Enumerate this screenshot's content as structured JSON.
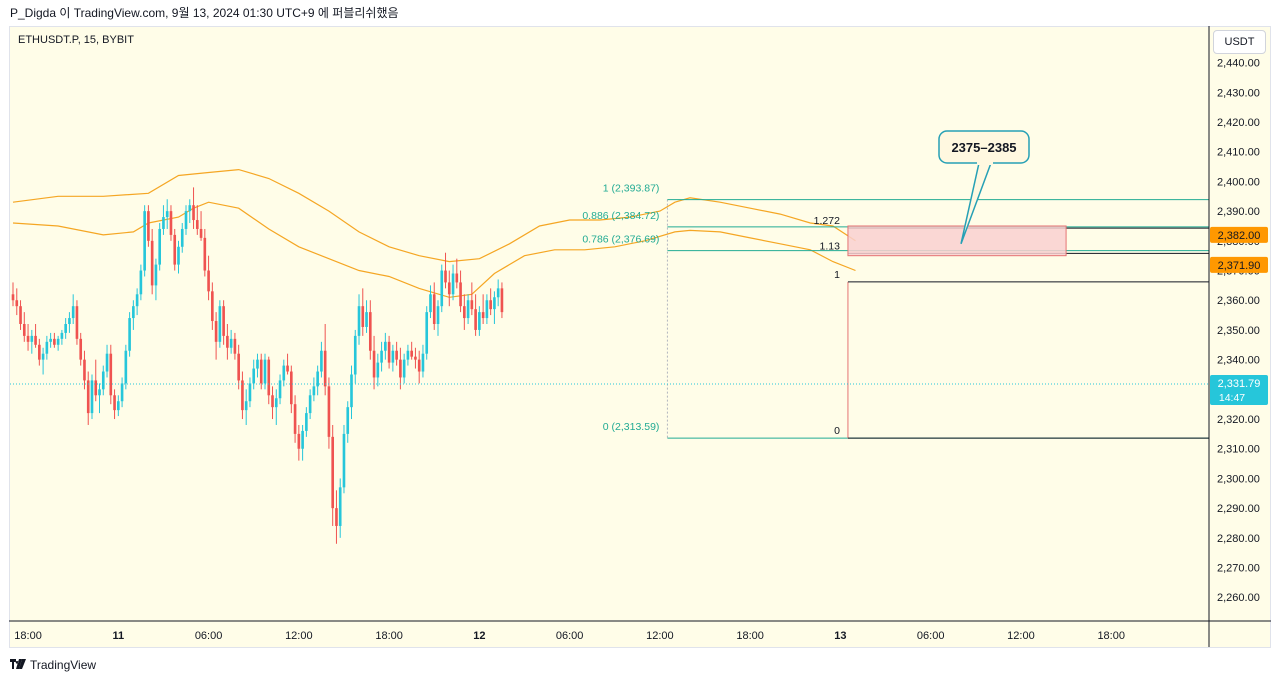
{
  "header": {
    "attribution": "P_Digda 이 TradingView.com, 9월 13, 2024 01:30 UTC+9 에 퍼블리쉬했음"
  },
  "symbol": "ETHUSDT.P, 15, BYBIT",
  "currency": "USDT",
  "footer": {
    "brand": "TradingView",
    "logo_icon": "tradingview-logo-icon"
  },
  "colors": {
    "up": "#26c6da",
    "down": "#ef5350",
    "band": "#f5a623",
    "fib": "#22ab94",
    "target_fill": "#f9d0d0",
    "target_border": "#e57373",
    "callout": "#26a0b5",
    "price_label": "#26c6da",
    "level_label": "#ff9800"
  },
  "chart_data": {
    "type": "candlestick",
    "y_axis": {
      "range": [
        2252,
        2452
      ],
      "ticks": [
        "2,440.00",
        "2,430.00",
        "2,420.00",
        "2,410.00",
        "2,400.00",
        "2,390.00",
        "2,380.00",
        "2,370.00",
        "2,360.00",
        "2,350.00",
        "2,340.00",
        "2,330.00",
        "2,320.00",
        "2,310.00",
        "2,300.00",
        "2,290.00",
        "2,280.00",
        "2,270.00",
        "2,260.00"
      ],
      "tick_values": [
        2440,
        2430,
        2420,
        2410,
        2400,
        2390,
        2380,
        2370,
        2360,
        2350,
        2340,
        2330,
        2320,
        2310,
        2300,
        2290,
        2280,
        2270,
        2260
      ]
    },
    "x_axis": {
      "labels": [
        "18:00",
        "11",
        "06:00",
        "12:00",
        "18:00",
        "12",
        "06:00",
        "12:00",
        "18:00",
        "13",
        "06:00",
        "12:00",
        "18:00"
      ],
      "label_hours": [
        0,
        6,
        12,
        18,
        24,
        30,
        36,
        42,
        48,
        54,
        60,
        66,
        72
      ],
      "bold": [
        false,
        true,
        false,
        false,
        false,
        true,
        false,
        false,
        false,
        true,
        false,
        false,
        false
      ],
      "range_hours": [
        -1.2,
        78.5
      ]
    },
    "current_price": {
      "value": 2331.79,
      "label": "2,331.79",
      "countdown": "14:47"
    },
    "price_labels": [
      {
        "value": 2382.0,
        "label": "2,382.00"
      },
      {
        "value": 2371.9,
        "label": "2,371.90"
      }
    ],
    "fib_retracement": {
      "start_hour": 42.5,
      "end_hour": 78.5,
      "levels": [
        {
          "label": "1 (2,393.87)",
          "value": 2393.87
        },
        {
          "label": "0.886 (2,384.72)",
          "value": 2384.72
        },
        {
          "label": "0.786 (2,376.69)",
          "value": 2376.69
        },
        {
          "label": "0 (2,313.59)",
          "value": 2313.59
        }
      ]
    },
    "fib_extension": {
      "start_hour": 54.5,
      "end_hour": 78.5,
      "levels": [
        {
          "label": "1.272",
          "value": 2384.3
        },
        {
          "label": "1.13",
          "value": 2375.8
        },
        {
          "label": "1",
          "value": 2366.2
        },
        {
          "label": "0",
          "value": 2313.59
        }
      ]
    },
    "target_zone": {
      "from_value": 2375,
      "to_value": 2385,
      "start_hour": 54.5,
      "end_hour": 69,
      "label": "2375–2385"
    },
    "bands": {
      "upper": [
        [
          -1,
          2393
        ],
        [
          2,
          2395
        ],
        [
          5,
          2395
        ],
        [
          8,
          2396
        ],
        [
          10,
          2402
        ],
        [
          12,
          2403
        ],
        [
          14,
          2404
        ],
        [
          16,
          2401
        ],
        [
          18,
          2396
        ],
        [
          20,
          2390
        ],
        [
          22,
          2383
        ],
        [
          24,
          2378
        ],
        [
          26,
          2375
        ],
        [
          28,
          2373
        ],
        [
          30,
          2374
        ],
        [
          32,
          2379
        ],
        [
          34,
          2385
        ],
        [
          36,
          2387
        ],
        [
          38,
          2387
        ],
        [
          40,
          2388
        ],
        [
          42,
          2390
        ],
        [
          43,
          2393
        ],
        [
          44,
          2394.5
        ],
        [
          46,
          2393
        ],
        [
          48,
          2391
        ],
        [
          50,
          2389
        ],
        [
          52,
          2386
        ],
        [
          53.5,
          2385
        ],
        [
          55,
          2380
        ]
      ],
      "lower": [
        [
          -1,
          2386
        ],
        [
          2,
          2385
        ],
        [
          5,
          2382
        ],
        [
          7,
          2383
        ],
        [
          8,
          2386
        ],
        [
          10,
          2388
        ],
        [
          11,
          2391
        ],
        [
          12,
          2393
        ],
        [
          14,
          2391
        ],
        [
          16,
          2384
        ],
        [
          18,
          2378
        ],
        [
          20,
          2374
        ],
        [
          22,
          2370
        ],
        [
          24,
          2368
        ],
        [
          26,
          2364
        ],
        [
          28,
          2361
        ],
        [
          29.5,
          2362
        ],
        [
          31,
          2369
        ],
        [
          33,
          2375
        ],
        [
          35,
          2377
        ],
        [
          37,
          2377
        ],
        [
          39,
          2378
        ],
        [
          41,
          2380
        ],
        [
          43,
          2383
        ],
        [
          44,
          2383.5
        ],
        [
          46,
          2383
        ],
        [
          48,
          2381
        ],
        [
          50,
          2379
        ],
        [
          52,
          2377
        ],
        [
          53.5,
          2373
        ],
        [
          55,
          2370
        ]
      ]
    },
    "candles": [
      [
        -1,
        2362,
        2366,
        2358,
        2360
      ],
      [
        -0.75,
        2360,
        2364,
        2355,
        2358
      ],
      [
        -0.5,
        2358,
        2360,
        2350,
        2352
      ],
      [
        -0.25,
        2352,
        2356,
        2346,
        2348
      ],
      [
        0,
        2348,
        2352,
        2343,
        2346
      ],
      [
        0.25,
        2346,
        2350,
        2342,
        2348
      ],
      [
        0.5,
        2348,
        2352,
        2344,
        2345
      ],
      [
        0.75,
        2345,
        2347,
        2338,
        2340
      ],
      [
        1,
        2340,
        2344,
        2335,
        2342
      ],
      [
        1.25,
        2342,
        2348,
        2340,
        2346
      ],
      [
        1.5,
        2346,
        2349,
        2344,
        2347
      ],
      [
        1.75,
        2347,
        2349,
        2344,
        2345
      ],
      [
        2,
        2345,
        2348,
        2343,
        2347
      ],
      [
        2.25,
        2347,
        2350,
        2345,
        2349
      ],
      [
        2.5,
        2349,
        2354,
        2347,
        2352
      ],
      [
        2.75,
        2352,
        2356,
        2349,
        2354
      ],
      [
        3,
        2354,
        2362,
        2352,
        2358
      ],
      [
        3.25,
        2358,
        2360,
        2345,
        2347
      ],
      [
        3.5,
        2347,
        2349,
        2338,
        2340
      ],
      [
        3.75,
        2340,
        2343,
        2330,
        2333
      ],
      [
        4,
        2333,
        2336,
        2318,
        2322
      ],
      [
        4.25,
        2322,
        2335,
        2320,
        2333
      ],
      [
        4.5,
        2333,
        2340,
        2326,
        2328
      ],
      [
        4.75,
        2328,
        2332,
        2322,
        2330
      ],
      [
        5,
        2330,
        2338,
        2328,
        2336
      ],
      [
        5.25,
        2336,
        2345,
        2334,
        2342
      ],
      [
        5.5,
        2342,
        2345,
        2325,
        2328
      ],
      [
        5.75,
        2328,
        2330,
        2320,
        2323
      ],
      [
        6,
        2323,
        2328,
        2321,
        2326
      ],
      [
        6.25,
        2326,
        2334,
        2324,
        2332
      ],
      [
        6.5,
        2332,
        2345,
        2330,
        2343
      ],
      [
        6.75,
        2343,
        2356,
        2341,
        2354
      ],
      [
        7,
        2354,
        2360,
        2350,
        2358
      ],
      [
        7.25,
        2358,
        2364,
        2355,
        2362
      ],
      [
        7.5,
        2362,
        2372,
        2360,
        2370
      ],
      [
        7.75,
        2370,
        2392,
        2368,
        2390
      ],
      [
        8,
        2390,
        2392,
        2378,
        2380
      ],
      [
        8.25,
        2380,
        2384,
        2362,
        2365
      ],
      [
        8.5,
        2365,
        2374,
        2360,
        2372
      ],
      [
        8.75,
        2372,
        2386,
        2370,
        2384
      ],
      [
        9,
        2384,
        2392,
        2382,
        2388
      ],
      [
        9.25,
        2388,
        2394,
        2384,
        2390
      ],
      [
        9.5,
        2390,
        2392,
        2380,
        2382
      ],
      [
        9.75,
        2382,
        2384,
        2370,
        2372
      ],
      [
        10,
        2372,
        2380,
        2369,
        2378
      ],
      [
        10.25,
        2378,
        2386,
        2376,
        2384
      ],
      [
        10.5,
        2384,
        2392,
        2382,
        2390
      ],
      [
        10.75,
        2390,
        2394,
        2386,
        2392
      ],
      [
        11,
        2392,
        2398,
        2384,
        2387
      ],
      [
        11.25,
        2387,
        2392,
        2382,
        2384
      ],
      [
        11.5,
        2384,
        2390,
        2380,
        2381
      ],
      [
        11.75,
        2381,
        2384,
        2368,
        2370
      ],
      [
        12,
        2370,
        2375,
        2360,
        2363
      ],
      [
        12.25,
        2363,
        2366,
        2350,
        2353
      ],
      [
        12.5,
        2353,
        2356,
        2340,
        2346
      ],
      [
        12.75,
        2346,
        2360,
        2344,
        2358
      ],
      [
        13,
        2358,
        2360,
        2345,
        2348
      ],
      [
        13.25,
        2348,
        2352,
        2340,
        2344
      ],
      [
        13.5,
        2344,
        2350,
        2342,
        2347
      ],
      [
        13.75,
        2347,
        2349,
        2340,
        2342
      ],
      [
        14,
        2342,
        2345,
        2330,
        2333
      ],
      [
        14.25,
        2333,
        2336,
        2320,
        2323
      ],
      [
        14.5,
        2323,
        2330,
        2318,
        2326
      ],
      [
        14.75,
        2326,
        2334,
        2324,
        2332
      ],
      [
        15,
        2332,
        2340,
        2330,
        2337
      ],
      [
        15.25,
        2337,
        2342,
        2334,
        2340
      ],
      [
        15.5,
        2340,
        2342,
        2330,
        2332
      ],
      [
        15.75,
        2332,
        2342,
        2330,
        2340
      ],
      [
        16,
        2340,
        2341,
        2325,
        2328
      ],
      [
        16.25,
        2328,
        2331,
        2320,
        2324
      ],
      [
        16.5,
        2324,
        2330,
        2318,
        2327
      ],
      [
        16.75,
        2327,
        2335,
        2325,
        2333
      ],
      [
        17,
        2333,
        2340,
        2331,
        2338
      ],
      [
        17.25,
        2338,
        2342,
        2335,
        2336
      ],
      [
        17.5,
        2336,
        2338,
        2322,
        2325
      ],
      [
        17.75,
        2325,
        2328,
        2312,
        2315
      ],
      [
        18,
        2315,
        2318,
        2306,
        2310
      ],
      [
        18.25,
        2310,
        2318,
        2306,
        2316
      ],
      [
        18.5,
        2316,
        2324,
        2314,
        2322
      ],
      [
        18.75,
        2322,
        2330,
        2320,
        2328
      ],
      [
        19,
        2328,
        2334,
        2326,
        2331
      ],
      [
        19.25,
        2331,
        2338,
        2328,
        2336
      ],
      [
        19.5,
        2336,
        2346,
        2334,
        2343
      ],
      [
        19.75,
        2343,
        2352,
        2328,
        2331
      ],
      [
        20,
        2331,
        2334,
        2310,
        2314
      ],
      [
        20.25,
        2314,
        2318,
        2284,
        2290
      ],
      [
        20.5,
        2290,
        2296,
        2278,
        2284
      ],
      [
        20.75,
        2284,
        2300,
        2280,
        2297
      ],
      [
        21,
        2297,
        2318,
        2295,
        2315
      ],
      [
        21.25,
        2315,
        2326,
        2312,
        2324
      ],
      [
        21.5,
        2324,
        2338,
        2320,
        2335
      ],
      [
        21.75,
        2335,
        2350,
        2332,
        2348
      ],
      [
        22,
        2348,
        2362,
        2345,
        2358
      ],
      [
        22.25,
        2358,
        2364,
        2348,
        2351
      ],
      [
        22.5,
        2351,
        2360,
        2349,
        2356
      ],
      [
        22.75,
        2356,
        2360,
        2340,
        2343
      ],
      [
        23,
        2343,
        2348,
        2330,
        2334
      ],
      [
        23.25,
        2334,
        2342,
        2331,
        2339
      ],
      [
        23.5,
        2339,
        2346,
        2336,
        2343
      ],
      [
        23.75,
        2343,
        2349,
        2340,
        2346
      ],
      [
        24,
        2346,
        2348,
        2337,
        2339
      ],
      [
        24.25,
        2339,
        2345,
        2336,
        2343
      ],
      [
        24.5,
        2343,
        2346,
        2338,
        2340
      ],
      [
        24.75,
        2340,
        2344,
        2330,
        2334
      ],
      [
        25,
        2334,
        2342,
        2332,
        2340
      ],
      [
        25.25,
        2340,
        2345,
        2338,
        2343
      ],
      [
        25.5,
        2343,
        2346,
        2340,
        2341
      ],
      [
        25.75,
        2341,
        2344,
        2337,
        2340
      ],
      [
        26,
        2340,
        2343,
        2332,
        2336
      ],
      [
        26.25,
        2336,
        2345,
        2334,
        2342
      ],
      [
        26.5,
        2342,
        2358,
        2340,
        2356
      ],
      [
        26.75,
        2356,
        2365,
        2354,
        2362
      ],
      [
        27,
        2362,
        2366,
        2350,
        2352
      ],
      [
        27.25,
        2352,
        2360,
        2348,
        2358
      ],
      [
        27.5,
        2358,
        2372,
        2356,
        2370
      ],
      [
        27.75,
        2370,
        2376,
        2364,
        2366
      ],
      [
        28,
        2366,
        2370,
        2358,
        2362
      ],
      [
        28.25,
        2362,
        2372,
        2360,
        2369
      ],
      [
        28.5,
        2369,
        2374,
        2364,
        2366
      ],
      [
        28.75,
        2366,
        2370,
        2356,
        2358
      ],
      [
        29,
        2358,
        2362,
        2350,
        2354
      ],
      [
        29.25,
        2354,
        2362,
        2352,
        2360
      ],
      [
        29.5,
        2360,
        2366,
        2355,
        2357
      ],
      [
        29.75,
        2357,
        2362,
        2348,
        2350
      ],
      [
        30,
        2350,
        2358,
        2348,
        2356
      ],
      [
        30.25,
        2356,
        2362,
        2352,
        2354
      ],
      [
        30.5,
        2354,
        2362,
        2352,
        2360
      ],
      [
        30.75,
        2360,
        2364,
        2355,
        2357
      ],
      [
        31,
        2357,
        2363,
        2352,
        2361
      ],
      [
        31.25,
        2361,
        2367,
        2358,
        2364
      ],
      [
        31.5,
        2364,
        2366,
        2354,
        2356
      ]
    ]
  }
}
